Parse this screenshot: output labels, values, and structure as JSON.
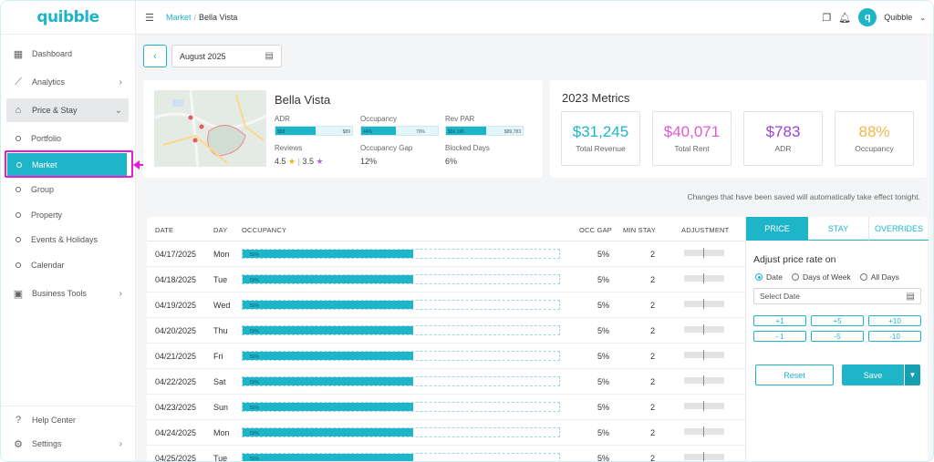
{
  "brand": {
    "name": "quibble",
    "accent": "#1fb5c9",
    "highlight": "#e91ad1"
  },
  "sidebar": {
    "items": [
      {
        "label": "Dashboard",
        "icon": "grid-icon"
      },
      {
        "label": "Analytics",
        "icon": "chart-line-icon",
        "chevron": "›"
      },
      {
        "label": "Price & Stay",
        "icon": "home-dollar-icon",
        "chevron": "⌄"
      },
      {
        "label": "Business Tools",
        "icon": "briefcase-icon",
        "chevron": "›"
      }
    ],
    "sub_items": [
      "Portfolio",
      "Market",
      "Group",
      "Property",
      "Events & Holidays",
      "Calendar"
    ],
    "footer": [
      {
        "label": "Help Center",
        "icon": "help-icon"
      },
      {
        "label": "Settings",
        "icon": "gear-icon",
        "chevron": "›"
      }
    ]
  },
  "topbar": {
    "breadcrumb": [
      "Market",
      "Bella Vista"
    ],
    "breadcrumb_sep": "/",
    "user": "Quibble",
    "avatar_letter": "q",
    "caret": "⌄"
  },
  "date_picker": {
    "value": "August 2025",
    "back": "‹"
  },
  "property": {
    "name": "Bella Vista",
    "adr": {
      "label": "ADR",
      "left": "$58",
      "right": "$89",
      "fill": 0.52
    },
    "occupancy": {
      "label": "Occupancy",
      "left": "44%",
      "right": "70%",
      "fill": 0.45
    },
    "revpar": {
      "label": "Rev PAR",
      "left": "$56,195",
      "right": "$89,783",
      "fill": 0.52
    },
    "reviews": {
      "label": "Reviews",
      "score1": "4.5",
      "sep": "|",
      "score2": "3.5"
    },
    "occupancy_gap": {
      "label": "Occupancy Gap",
      "value": "12%"
    },
    "blocked_days": {
      "label": "Blocked Days",
      "value": "6%"
    }
  },
  "metrics": {
    "title": "2023 Metrics",
    "boxes": [
      {
        "value": "$31,245",
        "label": "Total Revenue",
        "color": "#1fb5c9"
      },
      {
        "value": "$40,071",
        "label": "Total Rent",
        "color": "#e15ad6"
      },
      {
        "value": "$783",
        "label": "ADR",
        "color": "#9b45d6"
      },
      {
        "value": "88%",
        "label": "Occupancy",
        "color": "#f1b64a"
      }
    ]
  },
  "notice": "Changes that have been saved will automatically take effect tonight.",
  "table": {
    "headers": {
      "date": "DATE",
      "day": "DAY",
      "occupancy": "OCCUPANCY",
      "occ_gap": "OCC GAP",
      "min_stay": "MIN STAY",
      "adjustment": "ADJUSTMENT"
    },
    "rows": [
      {
        "date": "04/17/2025",
        "day": "Mon",
        "occ": "50%",
        "occ_fill": 0.54,
        "gap": "5%",
        "min": "2"
      },
      {
        "date": "04/18/2025",
        "day": "Tue",
        "occ": "50%",
        "occ_fill": 0.54,
        "gap": "5%",
        "min": "2"
      },
      {
        "date": "04/19/2025",
        "day": "Wed",
        "occ": "50%",
        "occ_fill": 0.54,
        "gap": "5%",
        "min": "2"
      },
      {
        "date": "04/20/2025",
        "day": "Thu",
        "occ": "50%",
        "occ_fill": 0.54,
        "gap": "5%",
        "min": "2"
      },
      {
        "date": "04/21/2025",
        "day": "Fri",
        "occ": "50%",
        "occ_fill": 0.54,
        "gap": "5%",
        "min": "2"
      },
      {
        "date": "04/22/2025",
        "day": "Sat",
        "occ": "50%",
        "occ_fill": 0.54,
        "gap": "5%",
        "min": "2"
      },
      {
        "date": "04/23/2025",
        "day": "Sun",
        "occ": "50%",
        "occ_fill": 0.54,
        "gap": "5%",
        "min": "2"
      },
      {
        "date": "04/24/2025",
        "day": "Mon",
        "occ": "50%",
        "occ_fill": 0.54,
        "gap": "5%",
        "min": "2"
      },
      {
        "date": "04/25/2025",
        "day": "Tue",
        "occ": "50%",
        "occ_fill": 0.54,
        "gap": "5%",
        "min": "2"
      }
    ]
  },
  "panel": {
    "tabs": [
      "PRICE",
      "STAY",
      "OVERRIDES"
    ],
    "title": "Adjust price rate on",
    "radios": [
      "Date",
      "Days of Week",
      "All Days"
    ],
    "date_placeholder": "Select Date",
    "steps": [
      "+1",
      "+5",
      "+10",
      "- 1",
      "-5",
      "-10"
    ],
    "reset": "Reset",
    "save": "Save",
    "save_caret": "▼"
  }
}
